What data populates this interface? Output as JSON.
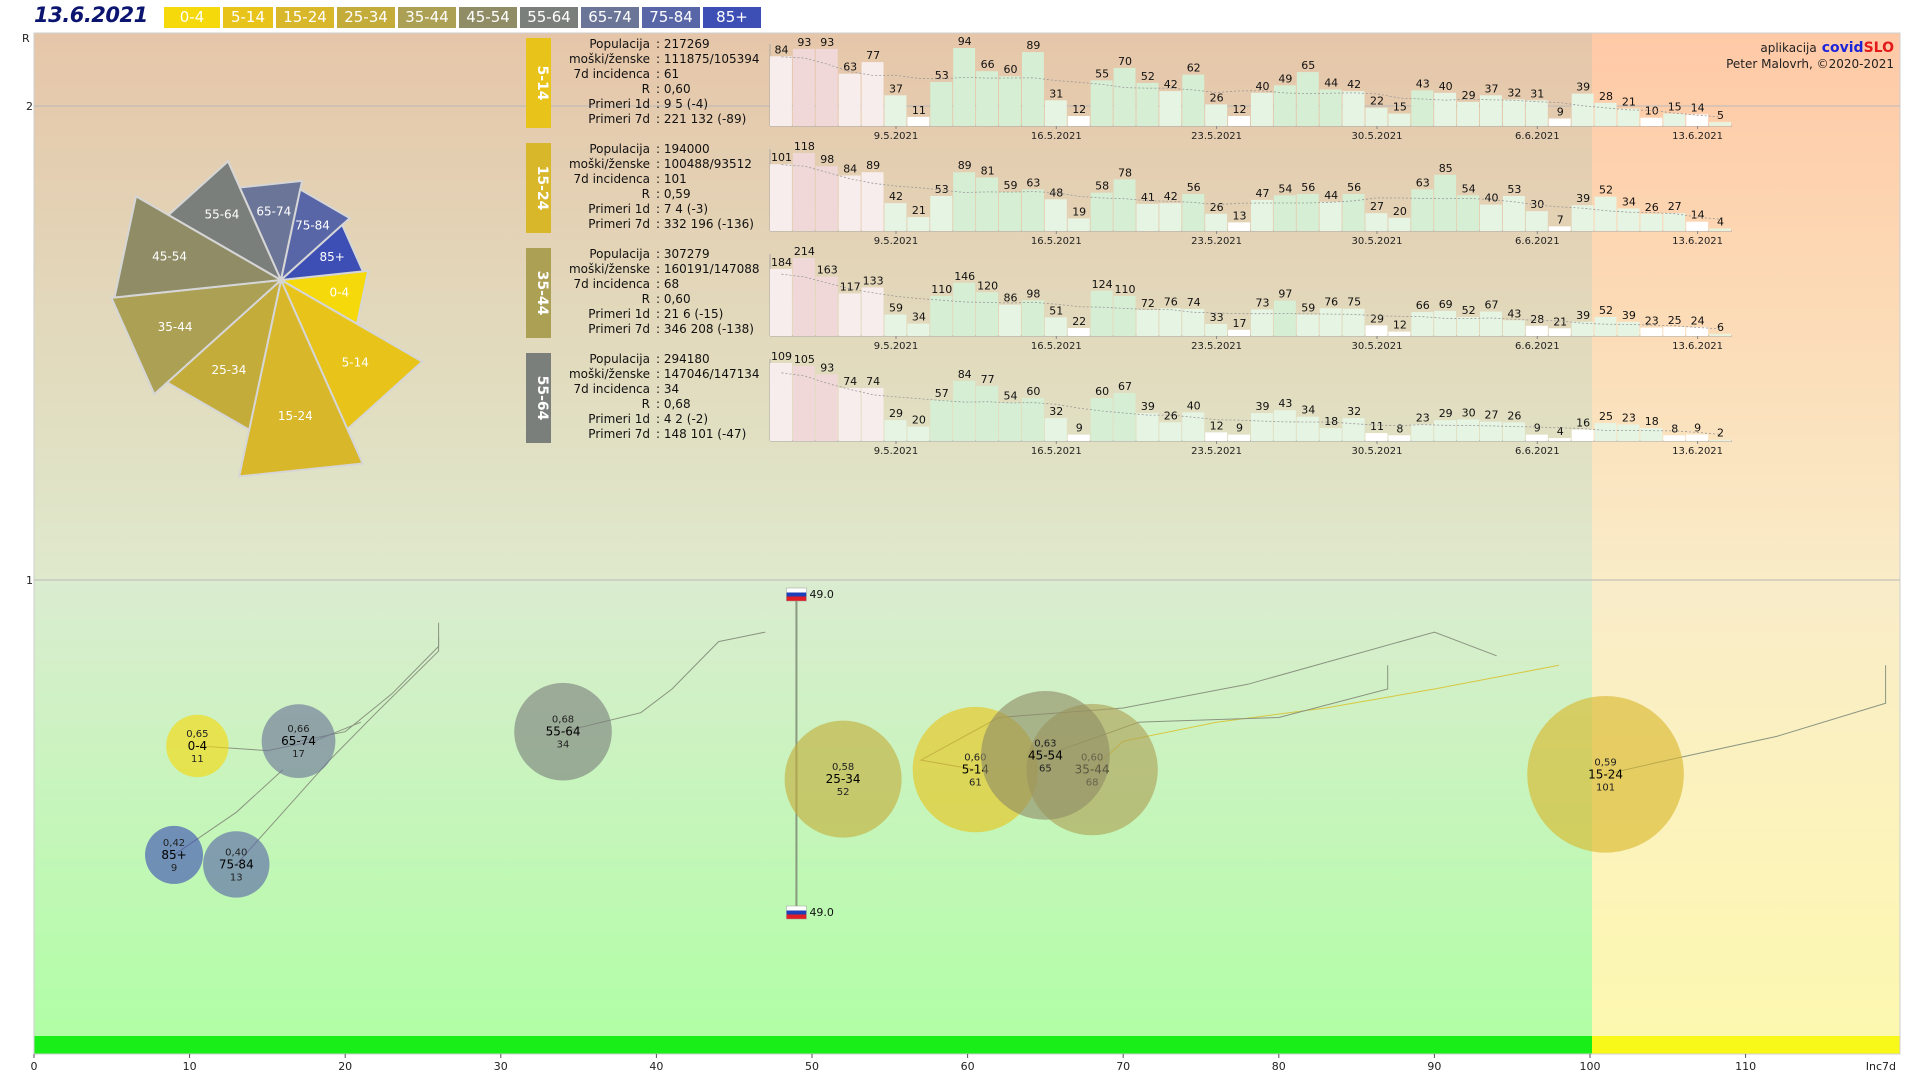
{
  "header": {
    "date": "13.6.2021",
    "legend": [
      {
        "label": "0-4",
        "color": "#f5d90a"
      },
      {
        "label": "5-14",
        "color": "#e8c41a"
      },
      {
        "label": "15-24",
        "color": "#d8b72a"
      },
      {
        "label": "25-34",
        "color": "#c4ac3a"
      },
      {
        "label": "35-44",
        "color": "#aca054"
      },
      {
        "label": "45-54",
        "color": "#8f8c66"
      },
      {
        "label": "55-64",
        "color": "#7b7f7c"
      },
      {
        "label": "65-74",
        "color": "#6a7598"
      },
      {
        "label": "75-84",
        "color": "#5866a8"
      },
      {
        "label": "85+",
        "color": "#3d4fb4"
      }
    ]
  },
  "credits": {
    "prefix": "aplikacija",
    "app_covid": "covid",
    "app_slo": "SLO",
    "author": "Peter Malovrh, ©2020-2021"
  },
  "axis": {
    "r_label": "R",
    "x_label": "Inc7d",
    "y_ticks": [
      {
        "v": 2,
        "t": "2"
      },
      {
        "v": 1,
        "t": "1"
      }
    ],
    "x_ticks": [
      "0",
      "10",
      "20",
      "30",
      "40",
      "50",
      "60",
      "70",
      "80",
      "90",
      "100",
      "110"
    ]
  },
  "flag": {
    "value_top": "49.0",
    "value_bottom": "49.0"
  },
  "rose": [
    {
      "label": "0-4",
      "value": 11,
      "color": "#f5d90a"
    },
    {
      "label": "5-14",
      "value": 61,
      "color": "#e8c41a"
    },
    {
      "label": "15-24",
      "value": 101,
      "color": "#d8b72a"
    },
    {
      "label": "25-34",
      "value": 52,
      "color": "#c4ac3a"
    },
    {
      "label": "35-44",
      "value": 68,
      "color": "#aca054"
    },
    {
      "label": "45-54",
      "value": 65,
      "color": "#8f8c66"
    },
    {
      "label": "55-64",
      "value": 34,
      "color": "#7b7f7c"
    },
    {
      "label": "65-74",
      "value": 17,
      "color": "#6a7598"
    },
    {
      "label": "75-84",
      "value": 13,
      "color": "#5866a8"
    },
    {
      "label": "85+",
      "value": 9,
      "color": "#3d4fb4"
    }
  ],
  "panels": [
    {
      "group": "5-14",
      "color": "#e8c41a",
      "info": [
        {
          "k": "Populacija",
          "v": ": 217269"
        },
        {
          "k": "moški/ženske",
          "v": ": 111875/105394"
        },
        {
          "k": "7d incidenca",
          "v": ": 61"
        },
        {
          "k": "R",
          "v": ": 0,60"
        },
        {
          "k": "Primeri 1d",
          "v": ": 9 5 (-4)"
        },
        {
          "k": "Primeri 7d",
          "v": ": 221 132 (-89)"
        }
      ],
      "first_label": "84",
      "values": [
        84,
        93,
        93,
        63,
        77,
        37,
        11,
        53,
        94,
        66,
        60,
        89,
        31,
        12,
        55,
        70,
        52,
        42,
        62,
        26,
        12,
        40,
        49,
        65,
        44,
        42,
        22,
        15,
        43,
        40,
        29,
        37,
        32,
        31,
        9,
        39,
        28,
        21,
        10,
        15,
        14,
        5
      ],
      "dates": [
        "9.5.2021",
        "16.5.2021",
        "23.5.2021",
        "30.5.2021",
        "6.6.2021",
        "13.6.2021"
      ]
    },
    {
      "group": "15-24",
      "color": "#d8b72a",
      "info": [
        {
          "k": "Populacija",
          "v": ": 194000"
        },
        {
          "k": "moški/ženske",
          "v": ": 100488/93512"
        },
        {
          "k": "7d incidenca",
          "v": ": 101"
        },
        {
          "k": "R",
          "v": ": 0,59"
        },
        {
          "k": "Primeri 1d",
          "v": ": 7 4 (-3)"
        },
        {
          "k": "Primeri 7d",
          "v": ": 332 196 (-136)"
        }
      ],
      "first_label": "101",
      "values": [
        101,
        118,
        98,
        84,
        89,
        42,
        21,
        53,
        89,
        81,
        59,
        63,
        48,
        19,
        58,
        78,
        41,
        42,
        56,
        26,
        13,
        47,
        54,
        56,
        44,
        56,
        27,
        20,
        63,
        85,
        54,
        40,
        53,
        30,
        7,
        39,
        52,
        34,
        26,
        27,
        14,
        4
      ],
      "dates": [
        "9.5.2021",
        "16.5.2021",
        "23.5.2021",
        "30.5.2021",
        "6.6.2021",
        "13.6.2021"
      ]
    },
    {
      "group": "35-44",
      "color": "#aca054",
      "info": [
        {
          "k": "Populacija",
          "v": ": 307279"
        },
        {
          "k": "moški/ženske",
          "v": ": 160191/147088"
        },
        {
          "k": "7d incidenca",
          "v": ": 68"
        },
        {
          "k": "R",
          "v": ": 0,60"
        },
        {
          "k": "Primeri 1d",
          "v": ": 21 6 (-15)"
        },
        {
          "k": "Primeri 7d",
          "v": ": 346 208 (-138)"
        }
      ],
      "first_label": "184",
      "values": [
        184,
        214,
        163,
        117,
        133,
        59,
        34,
        110,
        146,
        120,
        86,
        98,
        51,
        22,
        124,
        110,
        72,
        76,
        74,
        33,
        17,
        73,
        97,
        59,
        76,
        75,
        29,
        12,
        66,
        69,
        52,
        67,
        43,
        28,
        21,
        39,
        52,
        39,
        23,
        25,
        24,
        6
      ],
      "dates": [
        "9.5.2021",
        "16.5.2021",
        "23.5.2021",
        "30.5.2021",
        "6.6.2021",
        "13.6.2021"
      ]
    },
    {
      "group": "55-64",
      "color": "#7b7f7c",
      "info": [
        {
          "k": "Populacija",
          "v": ": 294180"
        },
        {
          "k": "moški/ženske",
          "v": ": 147046/147134"
        },
        {
          "k": "7d incidenca",
          "v": ": 34"
        },
        {
          "k": "R",
          "v": ": 0,68"
        },
        {
          "k": "Primeri 1d",
          "v": ": 4 2 (-2)"
        },
        {
          "k": "Primeri 7d",
          "v": ": 148 101 (-47)"
        }
      ],
      "first_label": "109",
      "values": [
        109,
        105,
        93,
        74,
        74,
        29,
        20,
        57,
        84,
        77,
        54,
        60,
        32,
        9,
        60,
        67,
        39,
        26,
        40,
        12,
        9,
        39,
        43,
        34,
        18,
        32,
        11,
        8,
        23,
        29,
        30,
        27,
        26,
        9,
        4,
        16,
        25,
        23,
        18,
        8,
        9,
        2
      ],
      "dates": [
        "9.5.2021",
        "16.5.2021",
        "23.5.2021",
        "30.5.2021",
        "6.6.2021",
        "13.6.2021"
      ]
    }
  ],
  "chart_data": {
    "type": "scatter",
    "xlabel": "Inc7d",
    "ylabel": "R",
    "xlim": [
      0,
      120
    ],
    "ylim": [
      0,
      2.2
    ],
    "grid": false,
    "series": [
      {
        "name": "0-4",
        "r": "0,65",
        "x": 10.5,
        "y": 0.65,
        "inc7d": 11,
        "color": "#f5d90a",
        "trail": [
          [
            15,
            0.64
          ],
          [
            18,
            0.66
          ],
          [
            21,
            0.7
          ]
        ]
      },
      {
        "name": "5-14",
        "r": "0,60",
        "x": 60.5,
        "y": 0.6,
        "inc7d": 61,
        "color": "#e8c41a",
        "trail": [
          [
            57,
            0.62
          ],
          [
            62,
            0.71
          ],
          [
            70,
            0.73
          ],
          [
            78,
            0.78
          ],
          [
            90,
            0.89
          ],
          [
            94,
            0.84
          ]
        ]
      },
      {
        "name": "15-24",
        "r": "0,59",
        "x": 101,
        "y": 0.59,
        "inc7d": 101,
        "color": "#d8b72a",
        "trail": [
          [
            105,
            0.62
          ],
          [
            112,
            0.67
          ],
          [
            119,
            0.74
          ],
          [
            119,
            0.82
          ]
        ]
      },
      {
        "name": "25-34",
        "r": "0,58",
        "x": 52,
        "y": 0.58,
        "inc7d": 52,
        "color": "#c4ac3a",
        "trail": []
      },
      {
        "name": "35-44",
        "r": "0,60",
        "x": 68,
        "y": 0.6,
        "inc7d": 68,
        "color": "#aca054",
        "trail": [
          [
            70,
            0.66
          ],
          [
            76,
            0.7
          ],
          [
            83,
            0.73
          ],
          [
            90,
            0.77
          ],
          [
            98,
            0.82
          ]
        ]
      },
      {
        "name": "45-54",
        "r": "0,63",
        "x": 65,
        "y": 0.63,
        "inc7d": 65,
        "color": "#8f8c66",
        "trail": [
          [
            71,
            0.7
          ],
          [
            80,
            0.71
          ],
          [
            87,
            0.77
          ],
          [
            87,
            0.82
          ]
        ]
      },
      {
        "name": "55-64",
        "r": "0,68",
        "x": 34,
        "y": 0.68,
        "inc7d": 34,
        "color": "#7b7f7c",
        "trail": [
          [
            39,
            0.72
          ],
          [
            41,
            0.77
          ],
          [
            44,
            0.87
          ],
          [
            47,
            0.89
          ]
        ]
      },
      {
        "name": "65-74",
        "r": "0,66",
        "x": 17,
        "y": 0.66,
        "inc7d": 17,
        "color": "#6a7598",
        "trail": [
          [
            20,
            0.68
          ],
          [
            23,
            0.76
          ],
          [
            26,
            0.86
          ],
          [
            26,
            0.91
          ]
        ]
      },
      {
        "name": "75-84",
        "r": "0,40",
        "x": 13,
        "y": 0.4,
        "inc7d": 13,
        "color": "#5866a8",
        "trail": [
          [
            16,
            0.51
          ],
          [
            19,
            0.62
          ],
          [
            22,
            0.72
          ],
          [
            26,
            0.85
          ],
          [
            26,
            0.88
          ]
        ]
      },
      {
        "name": "85+",
        "r": "0,42",
        "x": 9,
        "y": 0.42,
        "inc7d": 9,
        "color": "#3d4fb4",
        "trail": [
          [
            13,
            0.51
          ],
          [
            16,
            0.6
          ]
        ]
      }
    ],
    "national_reference": {
      "x": 49.0
    }
  }
}
